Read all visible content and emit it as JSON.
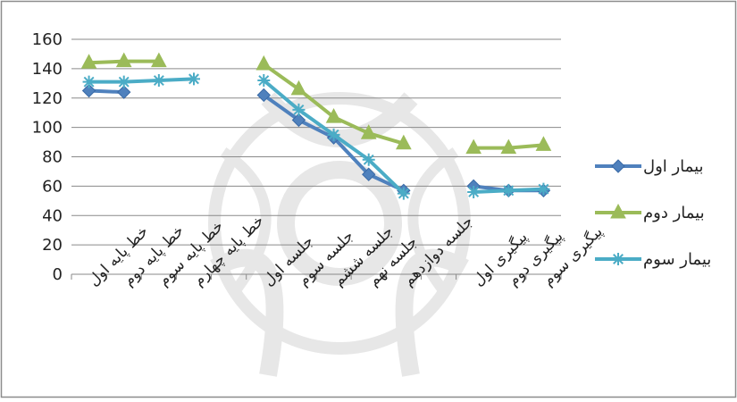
{
  "chart_data": {
    "type": "line",
    "title": "",
    "xlabel": "",
    "ylabel": "",
    "ylim": [
      0,
      160
    ],
    "yticks": [
      0,
      20,
      40,
      60,
      80,
      100,
      120,
      140,
      160
    ],
    "grid": true,
    "legend_position": "right",
    "categories": [
      "خط پایه اول",
      "خط پایه دوم",
      "خط پایه سوم",
      "خط پایه چهارم",
      "",
      "جلسه اول",
      "جلسه سوم",
      "جلسه ششم",
      "جلسه نهم",
      "جلسه دوازدهم",
      "",
      "پیگیری اول",
      "پیگیری دوم",
      "پیگیری سوم"
    ],
    "series": [
      {
        "name": "بیمار اول",
        "color": "#4F81BD",
        "marker": "diamond",
        "values": [
          125,
          124,
          null,
          null,
          null,
          122,
          105,
          93,
          68,
          57,
          null,
          60,
          57,
          57
        ]
      },
      {
        "name": "بیمار دوم",
        "color": "#9BBB59",
        "marker": "triangle",
        "values": [
          144,
          145,
          145,
          null,
          null,
          143,
          126,
          107,
          96,
          89,
          null,
          86,
          86,
          88
        ]
      },
      {
        "name": "بیمار سوم",
        "color": "#4BACC6",
        "marker": "star",
        "values": [
          131,
          131,
          132,
          133,
          null,
          132,
          112,
          95,
          78,
          55,
          null,
          56,
          57,
          58
        ]
      }
    ]
  }
}
